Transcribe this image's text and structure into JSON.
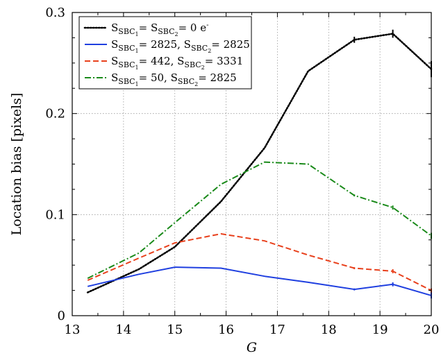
{
  "chart_data": {
    "type": "line",
    "title": "",
    "xlabel": "G",
    "ylabel": "Location bias [pixels]",
    "xlim": [
      13,
      20
    ],
    "ylim": [
      0,
      0.3
    ],
    "xticks": [
      13,
      14,
      15,
      16,
      17,
      18,
      19,
      20
    ],
    "yticks": [
      0,
      0.1,
      0.2,
      0.3
    ],
    "xtick_labels": [
      "13",
      "14",
      "15",
      "16",
      "17",
      "18",
      "19",
      "20"
    ],
    "ytick_labels": [
      "0",
      "0.1",
      "0.2",
      "0.3"
    ],
    "grid": true,
    "legend_position": "top-left",
    "series": [
      {
        "legend": {
          "p1": "S",
          "s1": "SBC",
          "s1n": "1",
          "p2": "= S",
          "s2": "SBC",
          "s2n": "2",
          "p3": "= 0 e",
          "sup": "-"
        },
        "color": "#000000",
        "dash": "dotted",
        "x": [
          13.3,
          14.3,
          15.0,
          15.9,
          16.75,
          17.6,
          18.5,
          19.25,
          20.0
        ],
        "y": [
          0.023,
          0.046,
          0.068,
          0.113,
          0.166,
          0.242,
          0.273,
          0.279,
          0.244
        ],
        "err": [
          0,
          0,
          0,
          0,
          0,
          0,
          0.003,
          0.004,
          0.008
        ]
      },
      {
        "legend": {
          "p1": "S",
          "s1": "SBC",
          "s1n": "1",
          "p2": "= 2825, S",
          "s2": "SBC",
          "s2n": "2",
          "p3": "= 2825",
          "sup": ""
        },
        "color": "#1f3fe0",
        "dash": "solid",
        "x": [
          13.3,
          14.3,
          15.0,
          15.9,
          16.75,
          17.6,
          18.5,
          19.25,
          20.0
        ],
        "y": [
          0.029,
          0.041,
          0.048,
          0.047,
          0.039,
          0.033,
          0.026,
          0.031,
          0.02
        ],
        "err": [
          0,
          0,
          0,
          0,
          0,
          0,
          0.001,
          0.002,
          0.003
        ]
      },
      {
        "legend": {
          "p1": "S",
          "s1": "SBC",
          "s1n": "1",
          "p2": "= 442, S",
          "s2": "SBC",
          "s2n": "2",
          "p3": "= 3331",
          "sup": ""
        },
        "color": "#e8401c",
        "dash": "dashed",
        "x": [
          13.3,
          14.3,
          15.0,
          15.9,
          16.75,
          17.6,
          18.5,
          19.25,
          20.0
        ],
        "y": [
          0.035,
          0.057,
          0.072,
          0.081,
          0.074,
          0.06,
          0.047,
          0.044,
          0.025
        ],
        "err": [
          0,
          0,
          0,
          0,
          0,
          0,
          0.001,
          0.002,
          0.002
        ]
      },
      {
        "legend": {
          "p1": "S",
          "s1": "SBC",
          "s1n": "1",
          "p2": "= 50, S",
          "s2": "SBC",
          "s2n": "2",
          "p3": "= 2825",
          "sup": ""
        },
        "color": "#1a8a1a",
        "dash": "dashdot",
        "x": [
          13.3,
          14.3,
          15.0,
          15.9,
          16.75,
          17.6,
          18.5,
          19.25,
          20.0
        ],
        "y": [
          0.037,
          0.062,
          0.092,
          0.13,
          0.152,
          0.15,
          0.119,
          0.107,
          0.079
        ],
        "err": [
          0,
          0,
          0,
          0,
          0,
          0,
          0.001,
          0.002,
          0.003
        ]
      }
    ]
  }
}
